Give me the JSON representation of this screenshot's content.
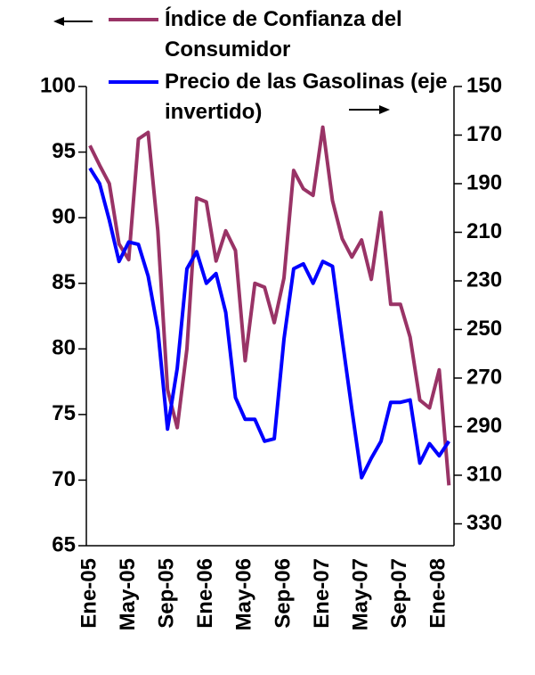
{
  "chart_data": {
    "type": "line",
    "categories": [
      "Ene-05",
      null,
      null,
      null,
      "May-05",
      null,
      null,
      null,
      "Sep-05",
      null,
      null,
      null,
      "Ene-06",
      null,
      null,
      null,
      "May-06",
      null,
      null,
      null,
      "Sep-06",
      null,
      null,
      null,
      "Ene-07",
      null,
      null,
      null,
      "May-07",
      null,
      null,
      null,
      "Sep-07",
      null,
      null,
      null,
      "Ene-08",
      null
    ],
    "series": [
      {
        "name": "Índice de Confianza del Consumidor",
        "color": "#993366",
        "values": [
          95.5,
          94,
          92.6,
          88,
          86.8,
          96,
          96.5,
          89,
          76.9,
          74,
          80,
          91.5,
          91.2,
          86.7,
          89,
          87.5,
          79.1,
          85,
          84.7,
          82,
          85.4,
          93.6,
          92.2,
          91.7,
          96.9,
          91.3,
          88.4,
          87,
          88.3,
          85.3,
          90.4,
          83.4,
          83.4,
          80.9,
          76.1,
          75.5,
          78.4,
          69.6
        ]
      },
      {
        "name": "Precio de las Gasolinas (eje invertido)",
        "color": "#0000ff",
        "axis": "y2",
        "values": [
          183.6,
          190,
          205,
          222,
          214,
          215,
          228,
          250,
          291,
          266,
          225,
          218,
          231,
          227,
          243,
          278,
          287,
          287,
          296,
          295,
          254,
          225,
          223,
          231,
          222,
          224,
          254,
          283,
          311,
          303,
          296,
          280,
          280,
          279,
          305,
          297,
          302,
          296
        ]
      }
    ],
    "ylim": [
      65,
      100
    ],
    "yticks": [
      65,
      70,
      75,
      80,
      85,
      90,
      95,
      100
    ],
    "y2lim": [
      339,
      150
    ],
    "y2ticks": [
      150,
      170,
      190,
      210,
      230,
      250,
      270,
      290,
      310,
      330
    ],
    "y2inverted": true
  }
}
